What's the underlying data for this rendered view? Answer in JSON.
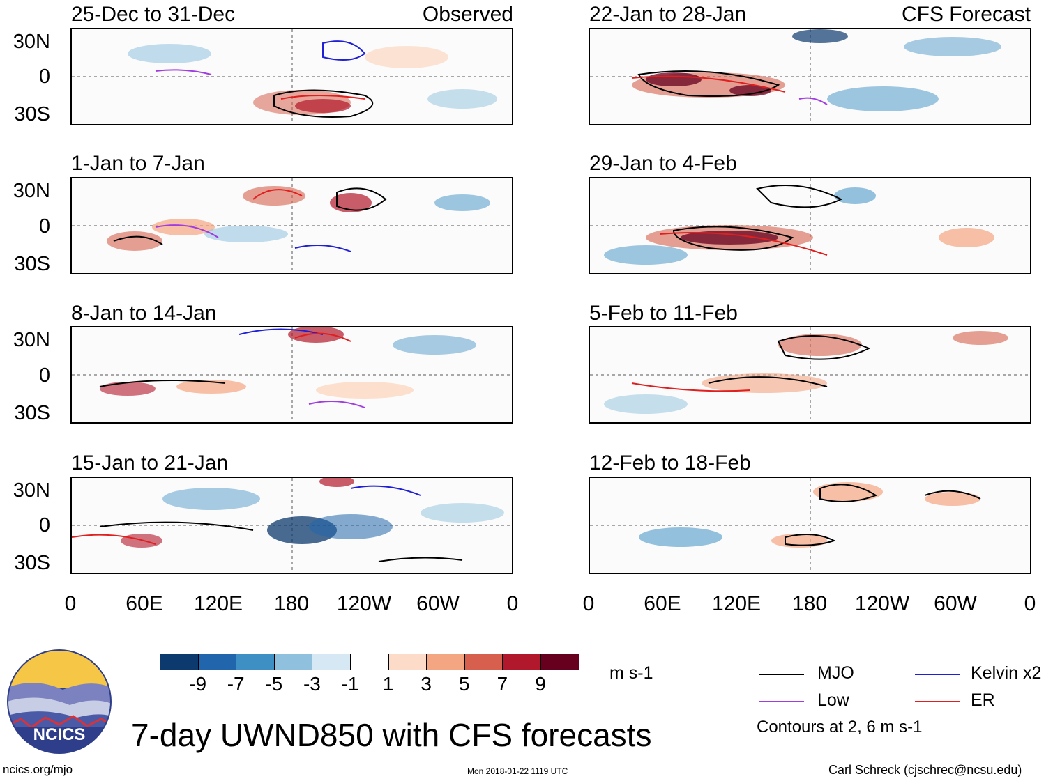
{
  "panels_left": [
    {
      "title": "25-Dec to 31-Dec",
      "tag": "Observed"
    },
    {
      "title": "1-Jan to 7-Jan",
      "tag": ""
    },
    {
      "title": "8-Jan to 14-Jan",
      "tag": ""
    },
    {
      "title": "15-Jan to 21-Jan",
      "tag": ""
    }
  ],
  "panels_right": [
    {
      "title": "22-Jan to 28-Jan",
      "tag": "CFS Forecast"
    },
    {
      "title": "29-Jan to 4-Feb",
      "tag": ""
    },
    {
      "title": "5-Feb to 11-Feb",
      "tag": ""
    },
    {
      "title": "12-Feb to 18-Feb",
      "tag": ""
    }
  ],
  "lat_labels": [
    "30N",
    "0",
    "30S"
  ],
  "lon_labels": [
    "0",
    "60E",
    "120E",
    "180",
    "120W",
    "60W",
    "0"
  ],
  "colorbar": {
    "unit": "m s-1",
    "ticks": [
      "-9",
      "-7",
      "-5",
      "-3",
      "-1",
      "1",
      "3",
      "5",
      "7",
      "9"
    ],
    "colors": [
      "#0c3a6e",
      "#2166ac",
      "#3d8fc4",
      "#8fc1de",
      "#d6e8f3",
      "#ffffff",
      "#fcdcc8",
      "#f4a582",
      "#d6604d",
      "#b2182b",
      "#67001f"
    ]
  },
  "legend": {
    "items": [
      {
        "label": "MJO",
        "color": "#000000"
      },
      {
        "label": "Kelvin x2",
        "color": "#1f1fd6"
      },
      {
        "label": "Low",
        "color": "#a03ce0"
      },
      {
        "label": "ER",
        "color": "#e01f1f"
      }
    ],
    "note": "Contours at 2, 6 m s-1"
  },
  "title": "7-day UWND850 with CFS forecasts",
  "logo_text": "NCICS",
  "footer": {
    "left": "ncics.org/mjo",
    "center": "Mon 2018-01-22 1119 UTC",
    "right": "Carl Schreck (cjschrec@ncsu.edu)"
  }
}
